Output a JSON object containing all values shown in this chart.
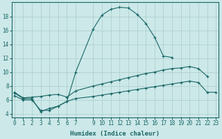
{
  "xlabel": "Humidex (Indice chaleur)",
  "bg_color": "#cce8e8",
  "grid_color": "#aacccc",
  "line_color": "#1a6666",
  "x_ticks": [
    0,
    1,
    2,
    3,
    4,
    5,
    6,
    7,
    9,
    10,
    11,
    12,
    13,
    14,
    15,
    16,
    17,
    18,
    19,
    20,
    21,
    22,
    23
  ],
  "ylim": [
    3.5,
    20.0
  ],
  "xlim": [
    -0.3,
    23.3
  ],
  "series": [
    {
      "x": [
        0,
        1,
        2,
        3,
        4,
        5,
        6,
        7,
        9,
        10,
        11,
        12,
        13,
        14,
        15,
        16,
        17,
        18
      ],
      "y": [
        7.0,
        6.2,
        6.2,
        4.3,
        4.8,
        5.1,
        5.8,
        10.0,
        16.2,
        18.2,
        19.0,
        19.3,
        19.2,
        18.3,
        17.0,
        15.0,
        12.3,
        12.1
      ],
      "marker": "+"
    },
    {
      "x": [
        0,
        1,
        2,
        3,
        4,
        5,
        6,
        7,
        9,
        10,
        11,
        12,
        13,
        14,
        15,
        16,
        17,
        18,
        19,
        20,
        21,
        22
      ],
      "y": [
        7.1,
        6.3,
        6.4,
        6.5,
        6.7,
        6.8,
        6.4,
        7.3,
        8.0,
        8.3,
        8.6,
        8.9,
        9.2,
        9.5,
        9.8,
        10.0,
        10.3,
        10.5,
        10.6,
        10.8,
        10.5,
        9.4
      ],
      "marker": "+"
    },
    {
      "x": [
        0,
        1,
        2,
        3,
        4,
        5,
        6,
        7,
        9,
        10,
        11,
        12,
        13,
        14,
        15,
        16,
        17,
        18,
        19,
        20,
        21,
        22,
        23
      ],
      "y": [
        6.6,
        6.0,
        6.0,
        4.5,
        4.5,
        5.1,
        5.8,
        6.2,
        6.5,
        6.7,
        6.9,
        7.1,
        7.3,
        7.5,
        7.7,
        7.9,
        8.1,
        8.3,
        8.5,
        8.7,
        8.5,
        7.1,
        7.1
      ],
      "marker": "+"
    }
  ],
  "yticks": [
    4,
    6,
    8,
    10,
    12,
    14,
    16,
    18
  ],
  "tick_fontsize": 5.5,
  "xlabel_fontsize": 6.5
}
